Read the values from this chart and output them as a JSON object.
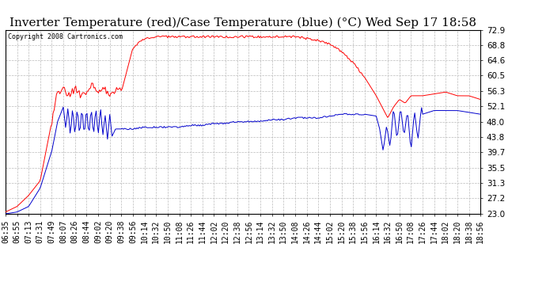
{
  "title": "Inverter Temperature (red)/Case Temperature (blue) (°C) Wed Sep 17 18:58",
  "copyright": "Copyright 2008 Cartronics.com",
  "y_ticks": [
    23.0,
    27.2,
    31.3,
    35.5,
    39.7,
    43.8,
    48.0,
    52.1,
    56.3,
    60.5,
    64.6,
    68.8,
    72.9
  ],
  "y_min": 23.0,
  "y_max": 72.9,
  "x_labels": [
    "06:35",
    "06:55",
    "07:13",
    "07:31",
    "07:49",
    "08:07",
    "08:26",
    "08:44",
    "09:02",
    "09:20",
    "09:38",
    "09:56",
    "10:14",
    "10:32",
    "10:50",
    "11:08",
    "11:26",
    "11:44",
    "12:02",
    "12:20",
    "12:38",
    "12:56",
    "13:14",
    "13:32",
    "13:50",
    "14:08",
    "14:26",
    "14:44",
    "15:02",
    "15:20",
    "15:38",
    "15:56",
    "16:14",
    "16:32",
    "16:50",
    "17:08",
    "17:26",
    "17:44",
    "18:02",
    "18:20",
    "18:38",
    "18:56"
  ],
  "background_color": "#ffffff",
  "plot_bg_color": "#ffffff",
  "grid_color": "#bbbbbb",
  "red_color": "#ff0000",
  "blue_color": "#0000cc",
  "title_fontsize": 11,
  "tick_fontsize": 7.5
}
